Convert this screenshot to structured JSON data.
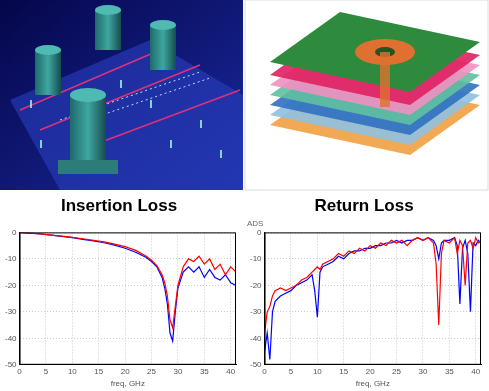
{
  "chart_data": [
    {
      "type": "line",
      "title": "Insertion Loss",
      "x_label": "freq, GHz",
      "x": [
        0,
        2,
        4,
        6,
        8,
        10,
        12,
        14,
        16,
        18,
        20,
        22,
        24,
        25,
        26,
        27,
        27.5,
        28,
        28.5,
        29,
        29.5,
        30,
        31,
        32,
        33,
        34,
        35,
        36,
        37,
        38,
        39,
        40,
        41
      ],
      "series": [
        {
          "color": "#ff0000",
          "values": [
            0,
            -0.3,
            -0.6,
            -1,
            -1.4,
            -1.9,
            -2.4,
            -3,
            -3.6,
            -4.4,
            -5.4,
            -6.8,
            -9,
            -10.5,
            -12.5,
            -16,
            -19,
            -24,
            -33,
            -36,
            -28,
            -20,
            -13,
            -10,
            -11,
            -9,
            -12,
            -10,
            -14,
            -12,
            -16,
            -13,
            -15
          ]
        },
        {
          "color": "#0000ff",
          "values": [
            0,
            -0.3,
            -0.6,
            -1,
            -1.5,
            -2,
            -2.6,
            -3.2,
            -3.9,
            -4.8,
            -6,
            -7.5,
            -9.5,
            -11,
            -13,
            -17,
            -21,
            -27,
            -38,
            -41,
            -30,
            -21,
            -15,
            -13,
            -15,
            -13,
            -17,
            -14,
            -17,
            -18,
            -16,
            -19,
            -20
          ]
        }
      ],
      "xlim": [
        0,
        41
      ],
      "xticks": [
        0,
        5,
        10,
        15,
        20,
        25,
        30,
        35,
        40
      ],
      "ylim": [
        -50,
        0
      ],
      "yticks": [
        -50,
        -40,
        -30,
        -20,
        -10,
        0
      ],
      "grid": true
    },
    {
      "type": "line",
      "title": "Return Loss",
      "x_label": "freq, GHz",
      "annotation": "ADS",
      "x": [
        0,
        0.5,
        1,
        1.5,
        2,
        3,
        4,
        5,
        6,
        7,
        8,
        9,
        9.5,
        10,
        10.5,
        11,
        12,
        13,
        14,
        15,
        16,
        17,
        18,
        19,
        20,
        21,
        22,
        23,
        24,
        25,
        26,
        27,
        28,
        29,
        30,
        31,
        32,
        32.5,
        33,
        33.5,
        34,
        35,
        36,
        36.5,
        37,
        37.5,
        38,
        38.5,
        39,
        39.5,
        40,
        40.5,
        41
      ],
      "series": [
        {
          "color": "#ff0000",
          "values": [
            -38,
            -30,
            -28,
            -24,
            -22,
            -21,
            -22,
            -21,
            -20,
            -18,
            -17,
            -15,
            -14,
            -13,
            -14,
            -12,
            -11,
            -10,
            -8,
            -9,
            -7,
            -8,
            -6,
            -7,
            -5,
            -6,
            -4,
            -5,
            -3,
            -4,
            -3,
            -5,
            -3,
            -2,
            -3,
            -2,
            -4,
            -12,
            -35,
            -8,
            -3,
            -4,
            -2,
            -8,
            -3,
            -5,
            -20,
            -4,
            -3,
            -6,
            -2,
            -4,
            -3
          ]
        },
        {
          "color": "#0000ff",
          "values": [
            -45,
            -38,
            -48,
            -30,
            -26,
            -24,
            -23,
            -22,
            -20,
            -19,
            -18,
            -16,
            -22,
            -32,
            -15,
            -13,
            -12,
            -11,
            -9,
            -10,
            -8,
            -7,
            -7,
            -6,
            -6,
            -5,
            -5,
            -4,
            -4,
            -3,
            -4,
            -3,
            -3,
            -2,
            -3,
            -2,
            -3,
            -5,
            -10,
            -4,
            -3,
            -3,
            -2,
            -5,
            -27,
            -6,
            -3,
            -8,
            -30,
            -4,
            -5,
            -3,
            -4
          ]
        }
      ],
      "xlim": [
        0,
        41
      ],
      "xticks": [
        0,
        5,
        10,
        15,
        20,
        25,
        30,
        35,
        40
      ],
      "ylim": [
        -50,
        0
      ],
      "yticks": [
        -50,
        -40,
        -30,
        -20,
        -10,
        0
      ],
      "grid": true
    }
  ]
}
